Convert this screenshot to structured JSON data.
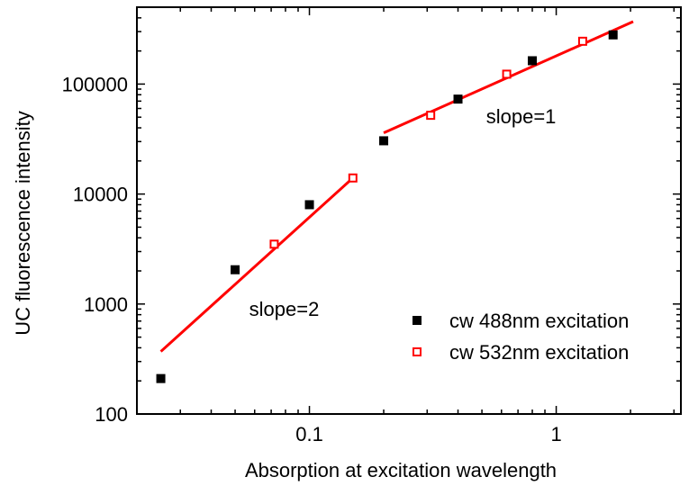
{
  "chart_data": {
    "type": "scatter",
    "x_scale": "log",
    "y_scale": "log",
    "xlabel": "Absorption at excitation wavelength",
    "ylabel": "UC fluorescence intensity",
    "xlim": [
      0.02,
      3.2
    ],
    "ylim": [
      100,
      500000
    ],
    "x_ticks": [
      0.1,
      1
    ],
    "x_tick_labels": [
      "0.1",
      "1"
    ],
    "y_ticks": [
      100,
      1000,
      10000,
      100000
    ],
    "y_tick_labels": [
      "100",
      "1000",
      "10000",
      "100000"
    ],
    "grid": false,
    "legend_position": "lower-right",
    "series": [
      {
        "name": "cw 488nm excitation",
        "marker": "filled-square",
        "color": "#000000",
        "points": [
          {
            "x": 0.025,
            "y": 210
          },
          {
            "x": 0.05,
            "y": 2050
          },
          {
            "x": 0.1,
            "y": 8000
          },
          {
            "x": 0.2,
            "y": 30500
          },
          {
            "x": 0.4,
            "y": 73000
          },
          {
            "x": 0.8,
            "y": 163000
          },
          {
            "x": 1.7,
            "y": 280000
          }
        ]
      },
      {
        "name": "cw 532nm excitation",
        "marker": "open-square",
        "color": "#ff0000",
        "points": [
          {
            "x": 0.072,
            "y": 3500
          },
          {
            "x": 0.15,
            "y": 14000
          },
          {
            "x": 0.31,
            "y": 52000
          },
          {
            "x": 0.63,
            "y": 123000
          },
          {
            "x": 1.28,
            "y": 245000
          }
        ]
      }
    ],
    "fit_lines": [
      {
        "label": "slope=2",
        "color": "#ff0000",
        "points": [
          {
            "x": 0.025,
            "y": 370
          },
          {
            "x": 0.15,
            "y": 14000
          }
        ]
      },
      {
        "label": "slope=1",
        "color": "#ff0000",
        "points": [
          {
            "x": 0.2,
            "y": 36000
          },
          {
            "x": 2.05,
            "y": 370000
          }
        ]
      }
    ],
    "annotations": [
      {
        "text": "slope=2",
        "x": 0.057,
        "y": 780
      },
      {
        "text": "slope=1",
        "x": 0.52,
        "y": 44000
      }
    ]
  }
}
